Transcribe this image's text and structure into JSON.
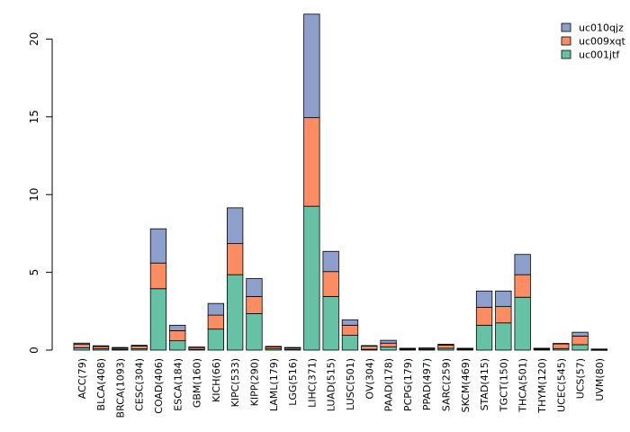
{
  "chart_data": {
    "type": "bar",
    "stacked": true,
    "title": "",
    "xlabel": "",
    "ylabel": "",
    "ylim": [
      0,
      21.6
    ],
    "yticks": [
      0,
      5,
      10,
      15,
      20
    ],
    "categories": [
      "ACC(79)",
      "BLCA(408)",
      "BRCA(1093)",
      "CESC(304)",
      "COAD(406)",
      "ESCA(184)",
      "GBM(160)",
      "KICH(66)",
      "KIPC(533)",
      "KIPP(290)",
      "LAML(179)",
      "LGG(516)",
      "LIHC(371)",
      "LUAD(515)",
      "LUSC(501)",
      "OV(304)",
      "PAAD(178)",
      "PCPG(179)",
      "PPAD(497)",
      "SARC(259)",
      "SKCM(469)",
      "STAD(415)",
      "TGCT(150)",
      "THCA(501)",
      "THYM(120)",
      "UCEC(545)",
      "UCS(57)",
      "UVM(80)"
    ],
    "series": [
      {
        "name": "uc001jtf",
        "color": "#66c2a5",
        "values": [
          0.15,
          0.08,
          0.05,
          0.08,
          3.95,
          0.6,
          0.05,
          1.35,
          4.85,
          2.35,
          0.08,
          0.05,
          9.25,
          3.45,
          0.95,
          0.05,
          0.2,
          0.04,
          0.05,
          0.12,
          0.04,
          1.6,
          1.75,
          3.4,
          0.04,
          0.1,
          0.35,
          0.02
        ]
      },
      {
        "name": "uc009xqt",
        "color": "#fc8d62",
        "values": [
          0.22,
          0.15,
          0.08,
          0.18,
          1.65,
          0.65,
          0.12,
          0.9,
          2.0,
          1.1,
          0.12,
          0.1,
          5.7,
          1.6,
          0.65,
          0.22,
          0.25,
          0.06,
          0.07,
          0.2,
          0.06,
          1.15,
          1.05,
          1.45,
          0.06,
          0.3,
          0.55,
          0.04
        ]
      },
      {
        "name": "uc010qjz",
        "color": "#8da0cb",
        "values": [
          0.08,
          0.05,
          0.04,
          0.05,
          2.2,
          0.35,
          0.03,
          0.75,
          2.3,
          1.15,
          0.04,
          0.02,
          6.65,
          1.3,
          0.35,
          0.02,
          0.18,
          0.02,
          0.02,
          0.06,
          0.02,
          1.05,
          1.0,
          1.3,
          0.02,
          0.03,
          0.25,
          0.01
        ]
      }
    ],
    "legend": {
      "position": "top-right",
      "order": [
        "uc010qjz",
        "uc009xqt",
        "uc001jtf"
      ]
    }
  }
}
